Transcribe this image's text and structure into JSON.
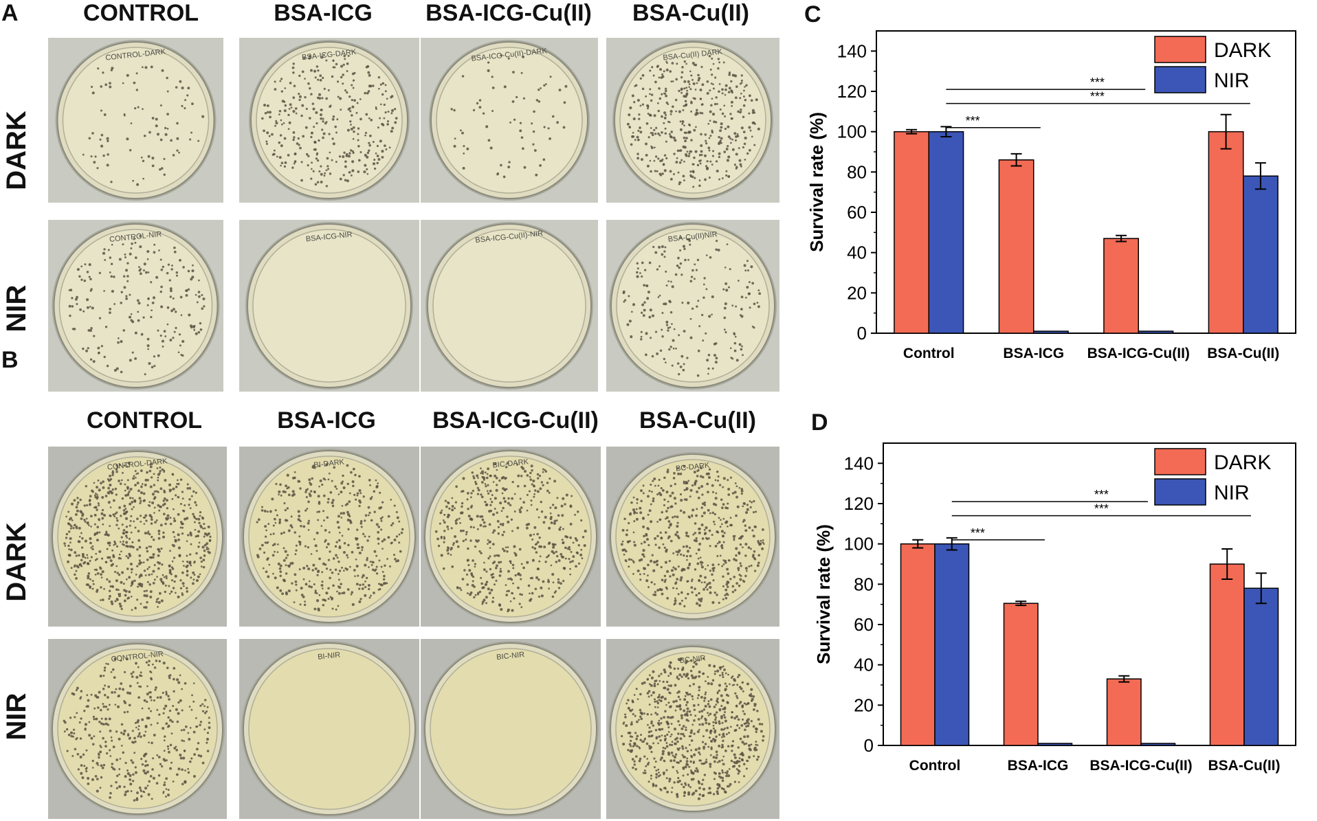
{
  "figure": {
    "panel_letters": {
      "A": "A",
      "B": "B",
      "C": "C",
      "D": "D"
    },
    "panel_A": {
      "columns": [
        "CONTROL",
        "BSA-ICG",
        "BSA-ICG-Cu(II)",
        "BSA-Cu(II)"
      ],
      "rows": [
        "DARK",
        "NIR"
      ],
      "plate_labels": [
        [
          "CONTROL-DARK",
          "BSA-ICG-DARK",
          "BSA-ICG-Cu(II)-DARK",
          "BSA-Cu(II) DARK"
        ],
        [
          "CONTROL-NIR",
          "BSA-ICG-NIR",
          "BSA-ICG-Cu(II)-NIR",
          "BSA-Cu(II)NIR"
        ]
      ]
    },
    "panel_B": {
      "columns": [
        "CONTROL",
        "BSA-ICG",
        "BSA-ICG-Cu(II)",
        "BSA-Cu(II)"
      ],
      "rows": [
        "DARK",
        "NIR"
      ],
      "plate_labels": [
        [
          "CONTROL-DARK",
          "BI-DARK",
          "BIC-DARK",
          "BC-DARK"
        ],
        [
          "CONTROL-NIR",
          "BI-NIR",
          "BIC-NIR",
          "BC-NIR"
        ]
      ]
    }
  },
  "colors": {
    "dark": "#f36b55",
    "nir": "#3b56b6",
    "plate_bg_A": "#c9cbc2",
    "plate_bg_B": "#b9bab4"
  },
  "chart_data": [
    {
      "panel": "C",
      "type": "bar",
      "categories": [
        "Control",
        "BSA-ICG",
        "BSA-ICG-Cu(II)",
        "BSA-Cu(II)"
      ],
      "series": [
        {
          "name": "DARK",
          "values": [
            100,
            86,
            47,
            100
          ],
          "errors": [
            1,
            3,
            1.5,
            8.5
          ]
        },
        {
          "name": "NIR",
          "values": [
            100,
            1,
            1,
            78
          ],
          "errors": [
            2.5,
            0,
            0,
            6.5
          ]
        }
      ],
      "title": "",
      "xlabel": "",
      "ylabel": "Survival rate (%)",
      "ylim": [
        0,
        150
      ],
      "yticks": [
        0,
        20,
        40,
        60,
        80,
        100,
        120,
        140
      ],
      "legend": "top-right",
      "significance": [
        {
          "from": "Control",
          "to": "BSA-ICG",
          "label": "***"
        },
        {
          "from": "Control",
          "to": "BSA-ICG-Cu(II)",
          "label": "***"
        },
        {
          "from": "Control",
          "to": "BSA-Cu(II)",
          "label": "***"
        }
      ]
    },
    {
      "panel": "D",
      "type": "bar",
      "categories": [
        "Control",
        "BSA-ICG",
        "BSA-ICG-Cu(II)",
        "BSA-Cu(II)"
      ],
      "series": [
        {
          "name": "DARK",
          "values": [
            100,
            70.5,
            33,
            90
          ],
          "errors": [
            2,
            1,
            1.5,
            7.5
          ]
        },
        {
          "name": "NIR",
          "values": [
            100,
            1,
            1,
            78
          ],
          "errors": [
            3,
            0,
            0,
            7.5
          ]
        }
      ],
      "title": "",
      "xlabel": "",
      "ylabel": "Survival rate (%)",
      "ylim": [
        0,
        150
      ],
      "yticks": [
        0,
        20,
        40,
        60,
        80,
        100,
        120,
        140
      ],
      "legend": "top-right",
      "significance": [
        {
          "from": "Control",
          "to": "BSA-ICG",
          "label": "***"
        },
        {
          "from": "Control",
          "to": "BSA-ICG-Cu(II)",
          "label": "***"
        },
        {
          "from": "Control",
          "to": "BSA-Cu(II)",
          "label": "***"
        }
      ]
    }
  ]
}
